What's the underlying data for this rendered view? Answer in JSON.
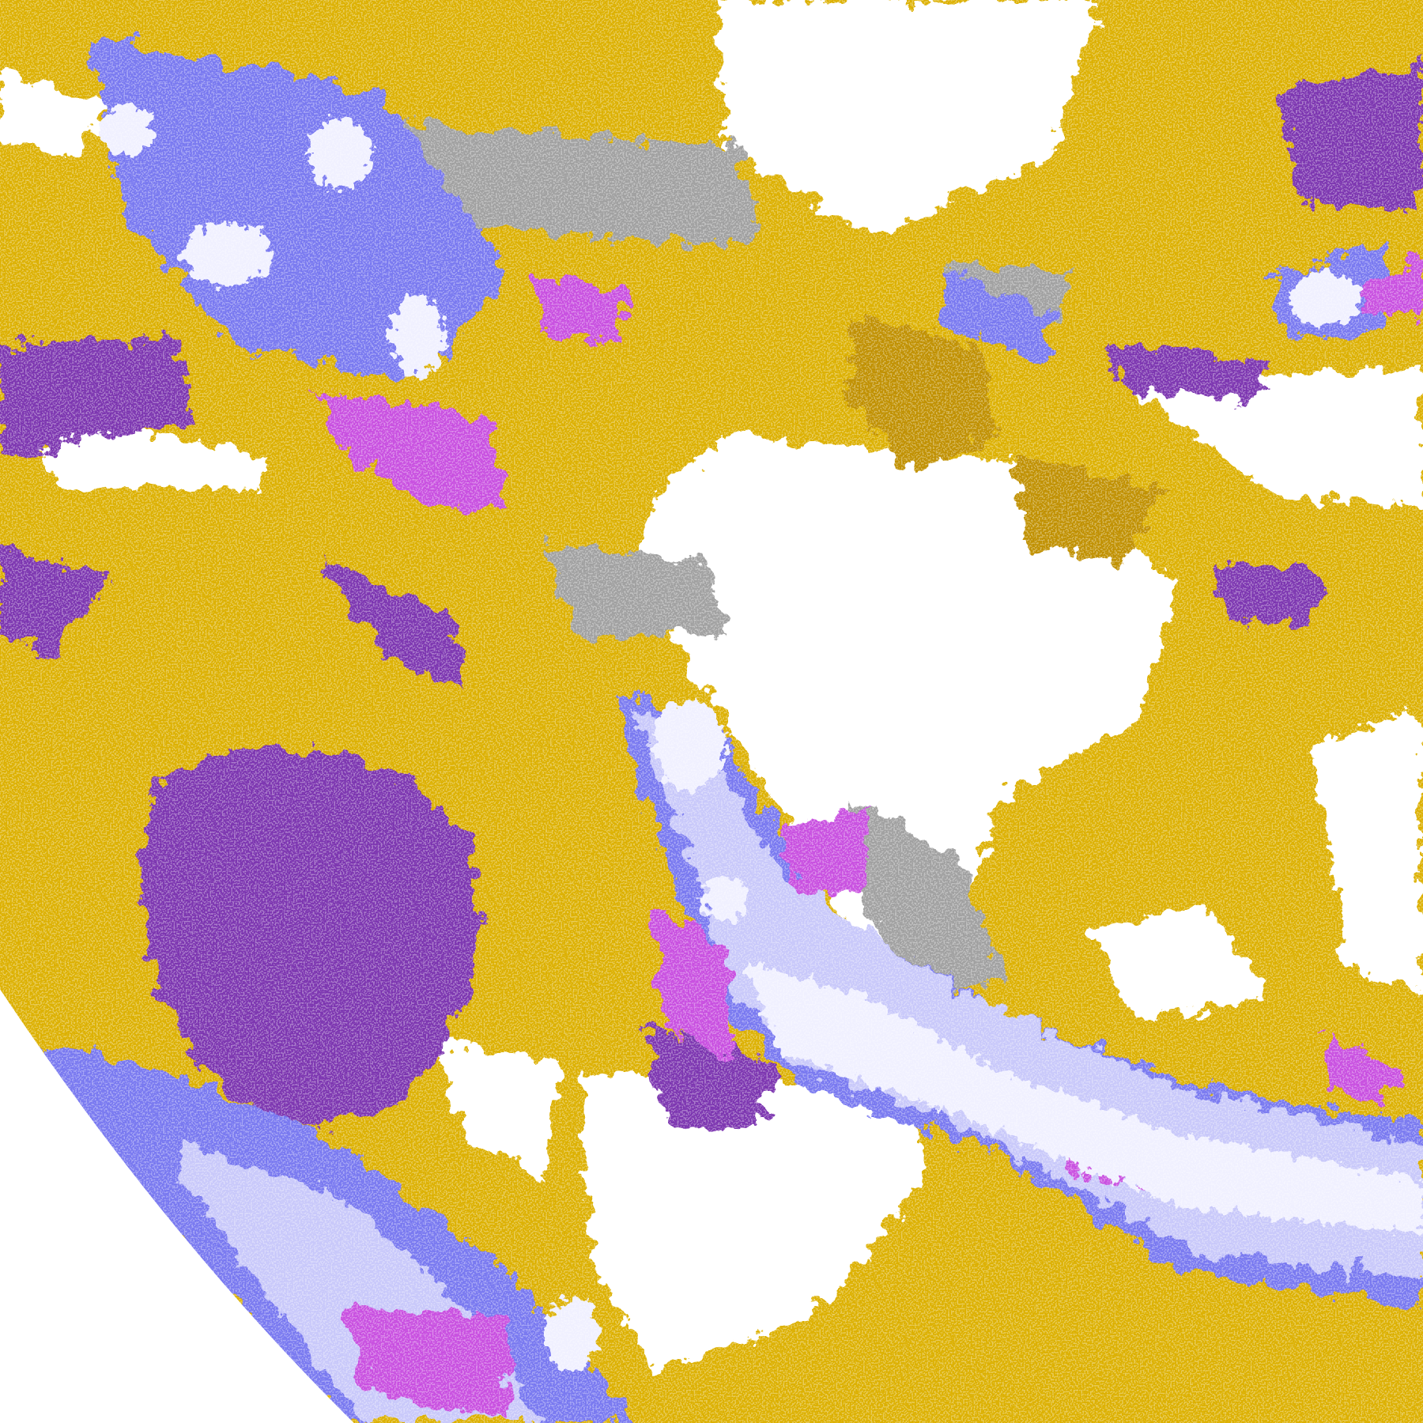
{
  "palette": {
    "background": "#ffffff",
    "gold": "#dcb000",
    "dark_gold": "#c09000",
    "purple": "#7b35b0",
    "magenta": "#c850e0",
    "blue": "#7878f0",
    "lavender": "#c8c8fa",
    "pale": "#f0f0ff",
    "gray": "#a0a0a0"
  }
}
